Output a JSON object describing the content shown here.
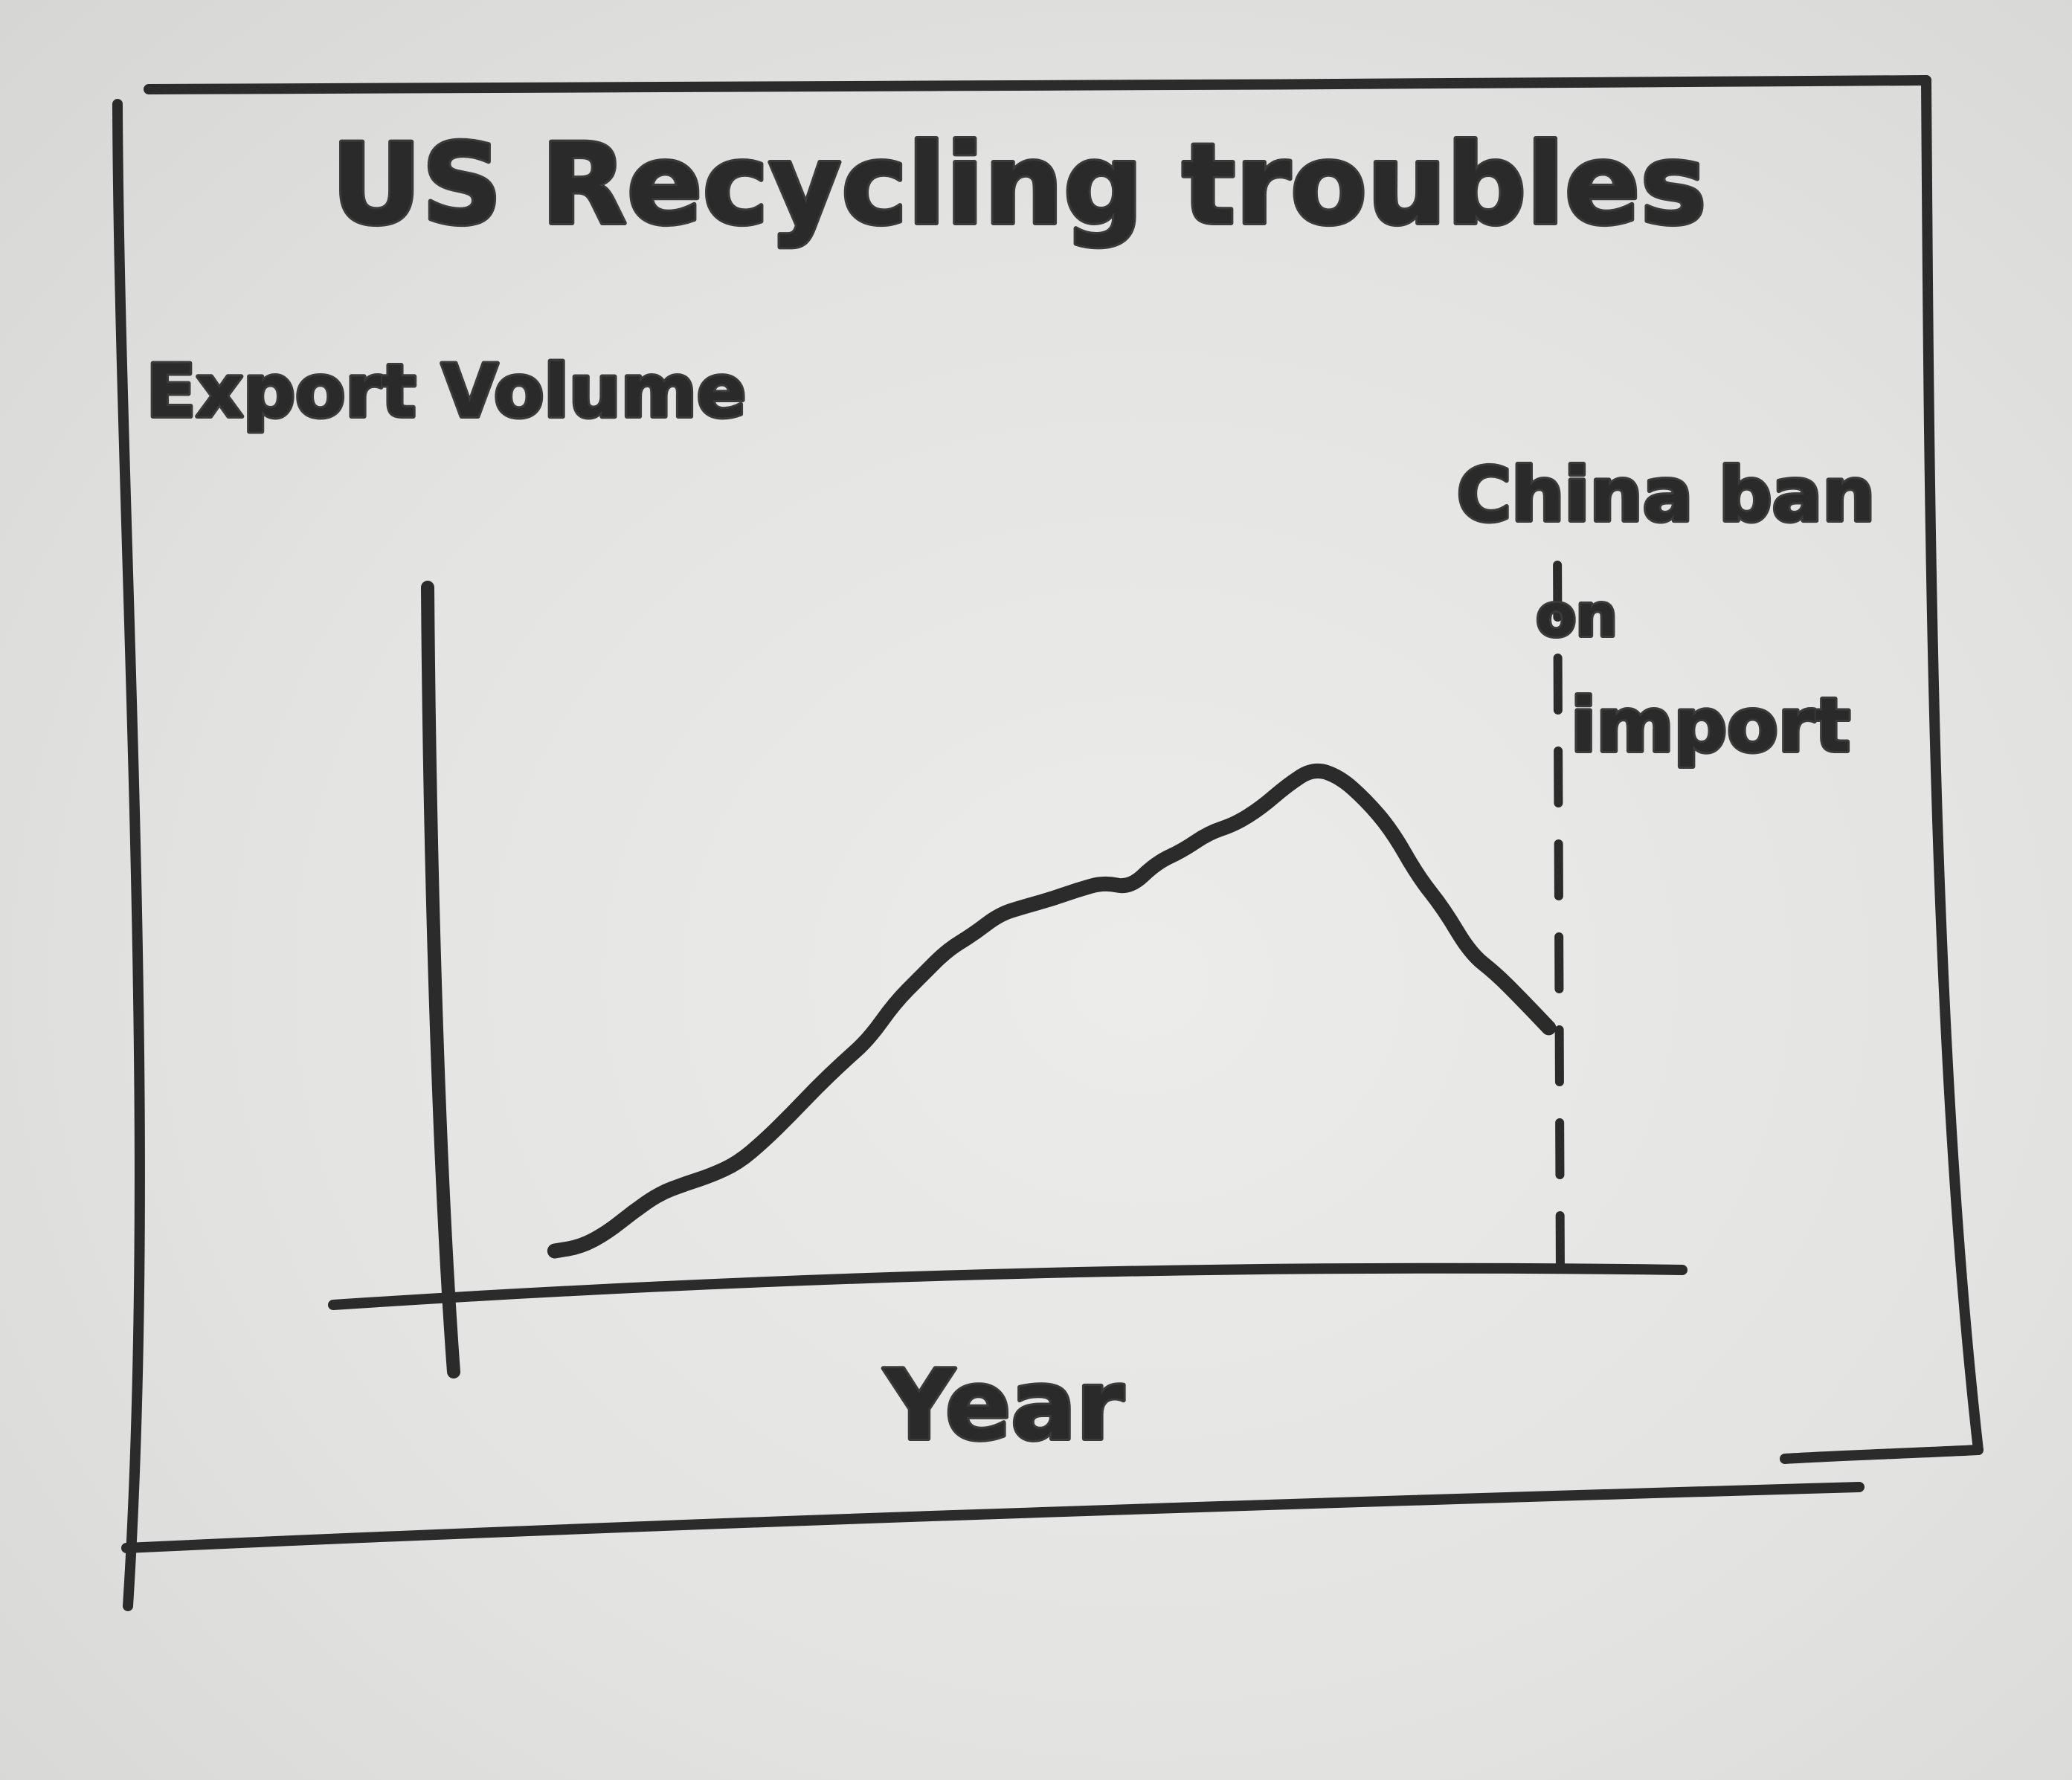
{
  "chart_data": {
    "type": "line",
    "title": "US Recycling troubles",
    "xlabel": "Year",
    "ylabel": "Export Volume",
    "grid": false,
    "legend": "none",
    "series": [
      {
        "x": [
          0,
          3,
          6,
          9,
          12,
          15,
          18,
          21,
          24,
          27,
          30,
          33,
          36,
          39,
          42,
          45,
          48,
          51,
          54,
          57,
          60,
          63,
          66,
          69,
          72,
          75,
          78,
          81,
          84,
          87,
          90,
          93,
          96,
          99,
          102,
          105,
          108,
          111,
          114
        ],
        "y": [
          7,
          7.7,
          10,
          13.4,
          16.4,
          18,
          19.4,
          21.4,
          25,
          29.2,
          33.7,
          37.8,
          41.6,
          47.6,
          51.9,
          56.2,
          58.8,
          62.1,
          63.4,
          64.6,
          66.1,
          67.3,
          66.4,
          70.5,
          72.5,
          75.4,
          76.8,
          79.5,
          83.2,
          86,
          84.6,
          80.8,
          75.8,
          68.3,
          62.9,
          55.7,
          52.3,
          48,
          43.5
        ]
      }
    ],
    "xlim": [
      -15,
      130
    ],
    "ylim": [
      0,
      118
    ],
    "annotations": [
      {
        "text_lines": [
          "China ban",
          "on",
          "import"
        ],
        "x": 115,
        "style": "dashed vertical line"
      }
    ]
  },
  "colors": {
    "board": "#e6e6e4",
    "marker": "#2b2b2b"
  }
}
